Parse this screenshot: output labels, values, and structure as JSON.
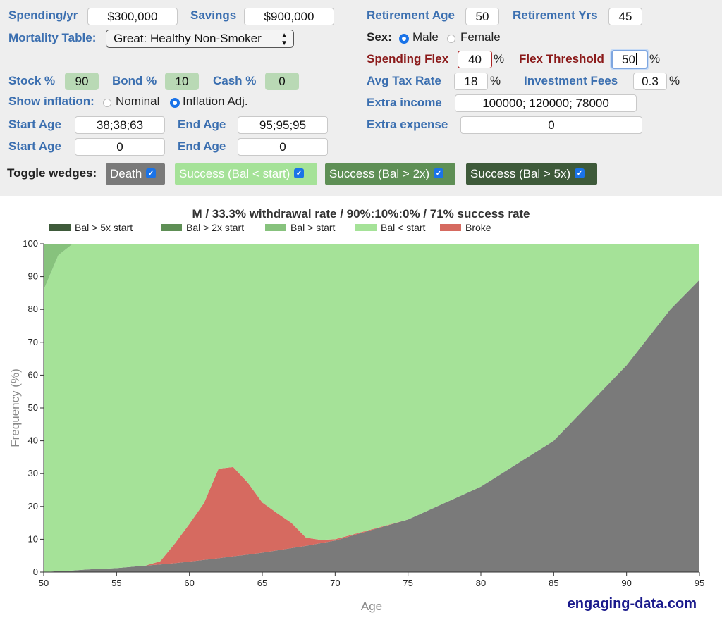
{
  "form": {
    "spending_label": "Spending/yr",
    "spending_value": "$300,000",
    "savings_label": "Savings",
    "savings_value": "$900,000",
    "mortality_label": "Mortality Table:",
    "mortality_value": "Great: Healthy Non-Smoker",
    "stock_label": "Stock %",
    "stock_value": "90",
    "bond_label": "Bond %",
    "bond_value": "10",
    "cash_label": "Cash %",
    "cash_value": "0",
    "inflation_label": "Show inflation:",
    "inflation_nominal": "Nominal",
    "inflation_adj": "Inflation Adj.",
    "start_age_label": "Start Age",
    "start_age_1": "38;38;63",
    "start_age_2": "0",
    "end_age_label": "End Age",
    "end_age_1": "95;95;95",
    "end_age_2": "0",
    "retirement_age_label": "Retirement Age",
    "retirement_age_value": "50",
    "retirement_yrs_label": "Retirement Yrs",
    "retirement_yrs_value": "45",
    "sex_label": "Sex:",
    "sex_male": "Male",
    "sex_female": "Female",
    "spending_flex_label": "Spending Flex",
    "spending_flex_value": "40",
    "flex_threshold_label": "Flex Threshold",
    "flex_threshold_value": "50",
    "avg_tax_label": "Avg Tax Rate",
    "avg_tax_value": "18",
    "fees_label": "Investment Fees",
    "fees_value": "0.3",
    "extra_income_label": "Extra income",
    "extra_income_value": "100000; 120000; 78000",
    "extra_expense_label": "Extra expense",
    "extra_expense_value": "0",
    "percent": "%"
  },
  "wedges": {
    "label": "Toggle wedges:",
    "death": "Death",
    "success_start": "Success (Bal < start)",
    "success_2x": "Success (Bal > 2x)",
    "success_5x": "Success (Bal > 5x)",
    "check": "✓"
  },
  "colors": {
    "bal_5x": "#3e5a3a",
    "bal_2x": "#5e8f55",
    "bal_start": "#87c27d",
    "bal_lt_start": "#a5e298",
    "broke": "#d66a60",
    "death": "#7a7a7a"
  },
  "brand": "engaging-data.com",
  "chart_data": {
    "type": "area",
    "title": "M / 33.3% withdrawal rate / 90%:10%:0% / 71% success rate",
    "xlabel": "Age",
    "ylabel": "Frequency (%)",
    "xlim": [
      50,
      95
    ],
    "ylim": [
      0,
      100
    ],
    "x_ticks": [
      50,
      55,
      60,
      65,
      70,
      75,
      80,
      85,
      90,
      95
    ],
    "y_ticks": [
      0,
      10,
      20,
      30,
      40,
      50,
      60,
      70,
      80,
      90,
      100
    ],
    "legend": [
      "Bal > 5x start",
      "Bal > 2x start",
      "Bal > start",
      "Bal < start",
      "Broke"
    ],
    "x": [
      50,
      51,
      52,
      53,
      55,
      57,
      58,
      59,
      60,
      61,
      62,
      63,
      64,
      65,
      66,
      67,
      68,
      69,
      70,
      75,
      80,
      85,
      90,
      93,
      95
    ],
    "series": [
      {
        "name": "Death",
        "values": [
          0,
          0.3,
          0.5,
          0.8,
          1.2,
          2,
          2.3,
          2.7,
          3.2,
          3.7,
          4.2,
          4.8,
          5.3,
          5.9,
          6.6,
          7.3,
          8.0,
          8.8,
          9.6,
          16,
          26,
          40,
          63,
          80,
          89
        ]
      },
      {
        "name": "Broke",
        "values": [
          0,
          0,
          0,
          0,
          0,
          0,
          1,
          6,
          11.5,
          17.3,
          27.3,
          27.2,
          22,
          15.3,
          11.4,
          7.7,
          2.5,
          1.0,
          0.4,
          0,
          0,
          0,
          0,
          0,
          0
        ]
      },
      {
        "name": "Bal > start",
        "values": [
          14,
          3.5,
          0,
          0,
          0,
          0,
          0,
          0,
          0,
          0,
          0,
          0,
          0,
          0,
          0,
          0,
          0,
          0,
          0,
          0,
          0,
          0,
          0,
          0,
          0
        ]
      },
      {
        "name": "Bal < start",
        "values": [
          86,
          96.2,
          99.5,
          99.2,
          98.8,
          98,
          96.7,
          91.3,
          85.3,
          79,
          68.5,
          68,
          72.7,
          78.8,
          82,
          85,
          89.5,
          90.2,
          90,
          84,
          74,
          60,
          37,
          20,
          11
        ]
      }
    ]
  }
}
